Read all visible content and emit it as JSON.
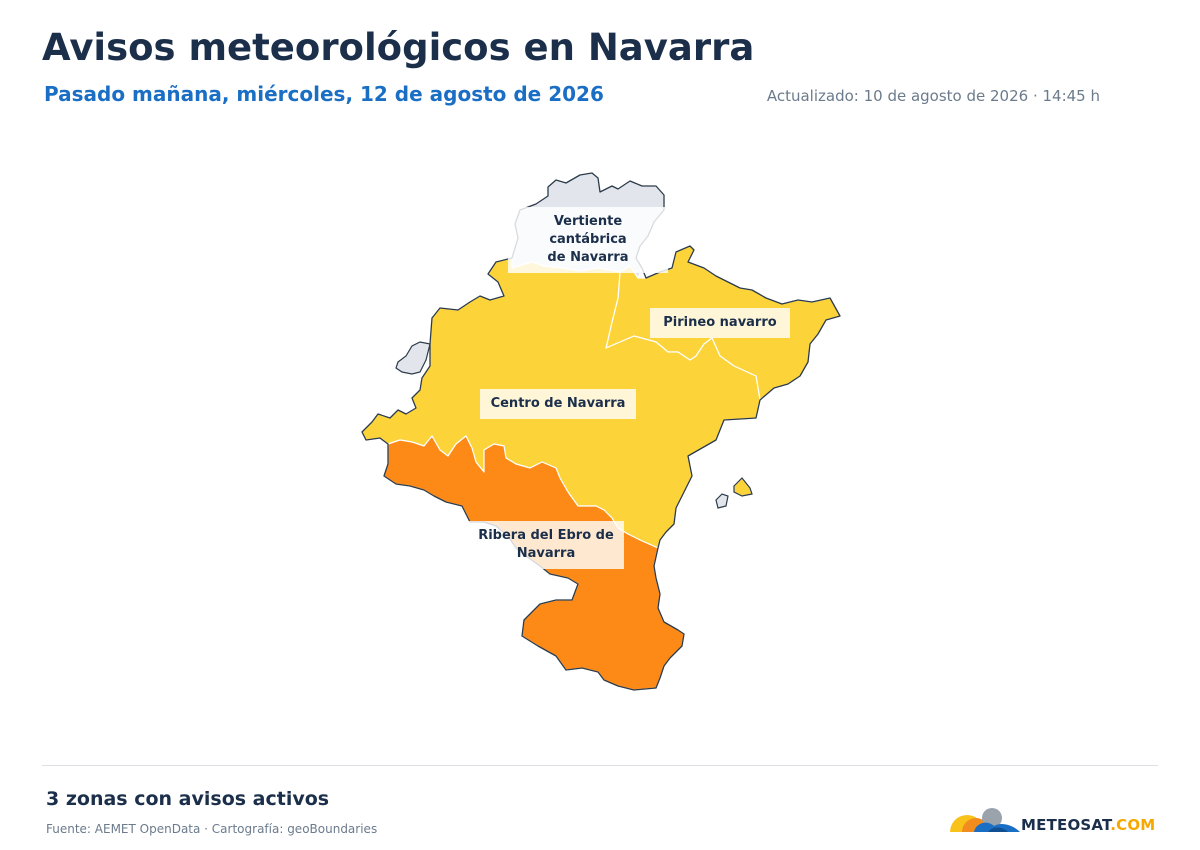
{
  "header": {
    "title": "Avisos meteorológicos en Navarra",
    "subtitle": "Pasado mañana, miércoles, 12 de agosto de 2026",
    "updated": "Actualizado: 10 de agosto de 2026 · 14:45 h"
  },
  "map": {
    "zones": [
      {
        "id": "vertiente",
        "line1": "Vertiente cantábrica",
        "line2": "de Navarra",
        "level": "none",
        "color": "#e2e6ec"
      },
      {
        "id": "pirineo",
        "line1": "Pirineo navarro",
        "line2": "",
        "level": "yellow",
        "color": "#fdd33a"
      },
      {
        "id": "centro",
        "line1": "Centro de Navarra",
        "line2": "",
        "level": "yellow",
        "color": "#fdd33a"
      },
      {
        "id": "ribera",
        "line1": "Ribera del Ebro de",
        "line2": "Navarra",
        "level": "orange",
        "color": "#fd8a17"
      }
    ]
  },
  "footer": {
    "summary": "3 zonas con avisos activos",
    "source": "Fuente: AEMET OpenData · Cartografía: geoBoundaries",
    "logo_main": "METEOSAT",
    "logo_suffix": ".COM"
  }
}
